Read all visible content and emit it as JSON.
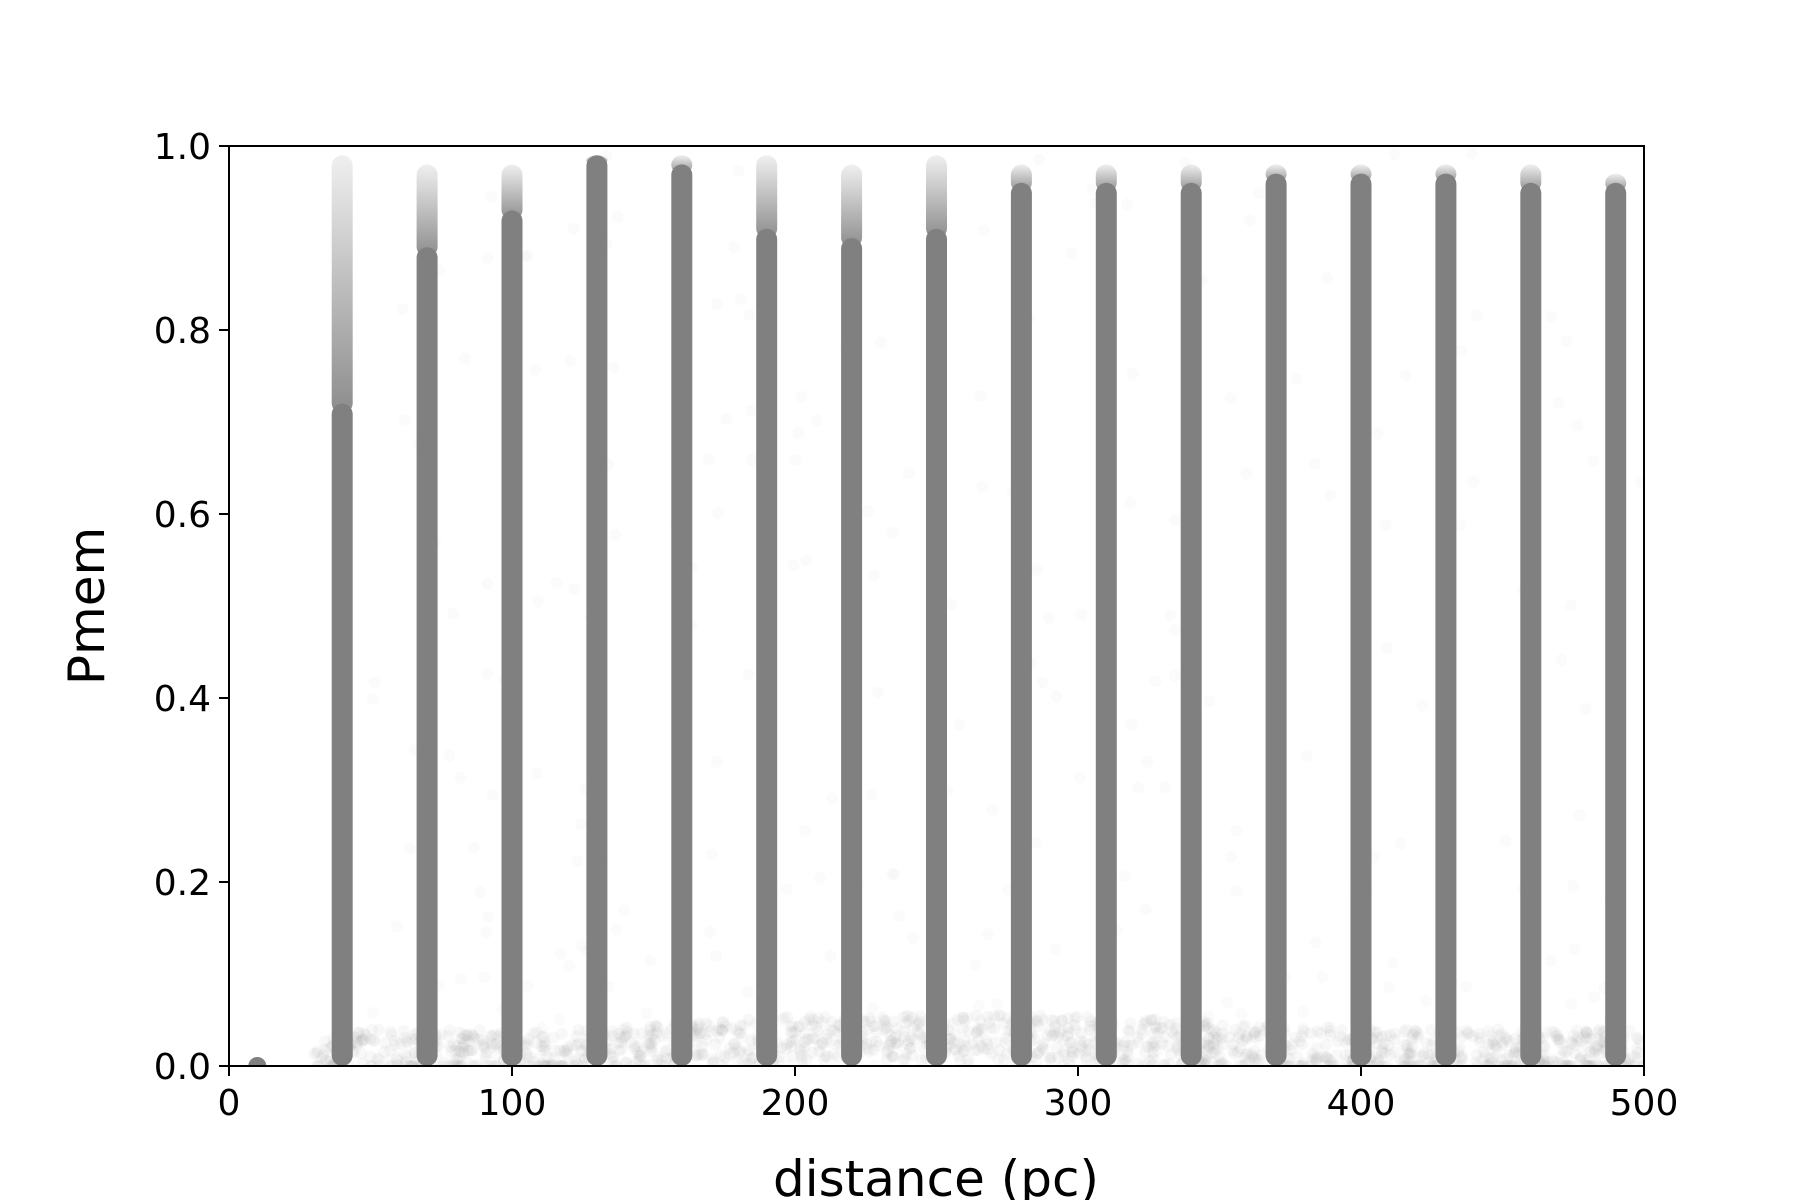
{
  "chart_data": {
    "type": "scatter",
    "title": "",
    "xlabel": "distance (pc)",
    "ylabel": "Pmem",
    "xlim": [
      0,
      500
    ],
    "ylim": [
      0,
      1.0
    ],
    "xticks": [
      0,
      100,
      200,
      300,
      400,
      500
    ],
    "xtick_labels": [
      "0",
      "100",
      "200",
      "300",
      "400",
      "500"
    ],
    "yticks": [
      0.0,
      0.2,
      0.4,
      0.6,
      0.8,
      1.0
    ],
    "ytick_labels": [
      "0.0",
      "0.2",
      "0.4",
      "0.6",
      "0.8",
      "1.0"
    ],
    "grid": false,
    "legend": "none",
    "point_color": "#808080",
    "series": [
      {
        "marker": "dense vertical columns",
        "distances": [
          40,
          70,
          100,
          130,
          160,
          190,
          220,
          250,
          280,
          310,
          340,
          370,
          400,
          430,
          460,
          490
        ],
        "pmem_min": [
          0,
          0,
          0,
          0,
          0,
          0,
          0,
          0,
          0,
          0,
          0,
          0,
          0,
          0,
          0,
          0
        ],
        "pmem_max_solid": [
          0.72,
          0.89,
          0.93,
          0.99,
          0.98,
          0.91,
          0.9,
          0.91,
          0.96,
          0.96,
          0.96,
          0.97,
          0.97,
          0.97,
          0.96,
          0.96
        ],
        "pmem_max_faint": [
          0.99,
          0.98,
          0.98,
          0.99,
          0.99,
          0.99,
          0.98,
          0.99,
          0.98,
          0.98,
          0.98,
          0.98,
          0.98,
          0.98,
          0.98,
          0.97
        ]
      },
      {
        "marker": "single point",
        "x": [
          10
        ],
        "y": [
          0.0
        ]
      },
      {
        "marker": "faint background scatter",
        "x_range": [
          30,
          500
        ],
        "pmem_band_center": [
          [
            100,
            0.01
          ],
          [
            200,
            0.03
          ],
          [
            300,
            0.03
          ],
          [
            400,
            0.015
          ],
          [
            500,
            0.015
          ]
        ],
        "pmem_sparse_max": 1.0
      }
    ]
  }
}
